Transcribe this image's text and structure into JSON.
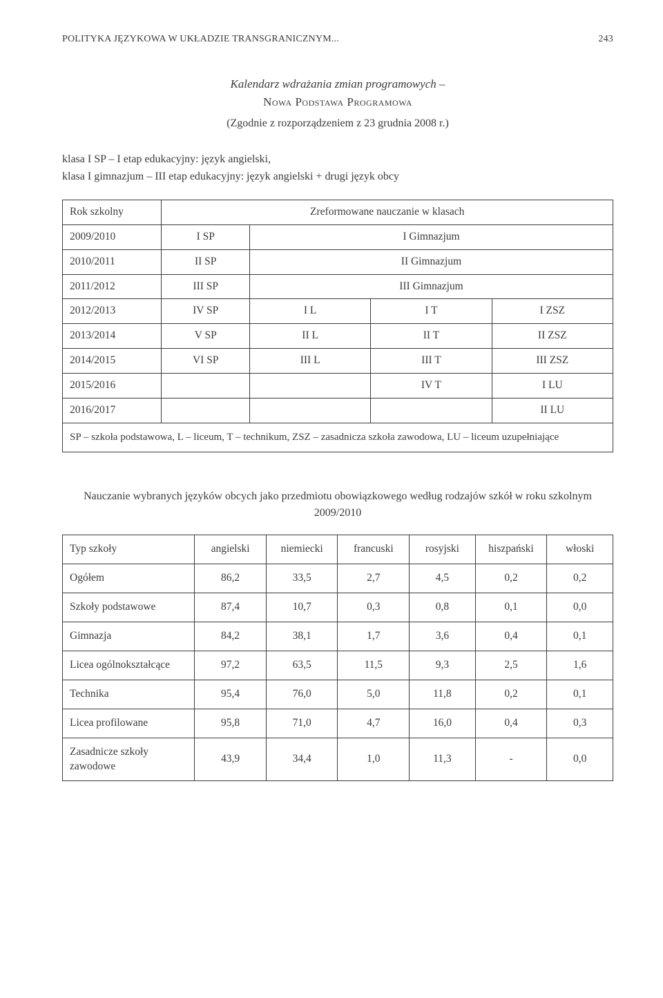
{
  "header": {
    "running_title": "POLITYKA JĘZYKOWA W UKŁADZIE TRANSGRANICZNYM...",
    "page_number": "243"
  },
  "section1": {
    "title_line1": "Kalendarz wdrażania zmian programowych –",
    "title_smallcaps": "Nowa Podstawa Programowa",
    "source": "(Zgodnie z rozporządzeniem z 23 grudnia 2008 r.)",
    "intro_line1": "klasa I SP – I etap edukacyjny: język angielski,",
    "intro_line2": "klasa I gimnazjum – III etap edukacyjny: język angielski + drugi język obcy"
  },
  "table1": {
    "headers": {
      "col0": "Rok szkolny",
      "col_span": "Zreformowane nauczanie w klasach"
    },
    "rows": [
      {
        "year": "2009/2010",
        "sp": "I SP",
        "span3": "I Gimnazjum"
      },
      {
        "year": "2010/2011",
        "sp": "II SP",
        "span3": "II Gimnazjum"
      },
      {
        "year": "2011/2012",
        "sp": "III SP",
        "span3": "III Gimnazjum"
      },
      {
        "year": "2012/2013",
        "sp": "IV SP",
        "l": "I L",
        "t": "I T",
        "z": "I ZSZ"
      },
      {
        "year": "2013/2014",
        "sp": "V SP",
        "l": "II L",
        "t": "II T",
        "z": "II ZSZ"
      },
      {
        "year": "2014/2015",
        "sp": "VI SP",
        "l": "III L",
        "t": "III T",
        "z": "III ZSZ"
      },
      {
        "year": "2015/2016",
        "sp": "",
        "l": "",
        "t": "IV T",
        "z": "I LU"
      },
      {
        "year": "2016/2017",
        "sp": "",
        "l": "",
        "t": "",
        "z": "II LU"
      }
    ],
    "footnote": "SP – szkoła podstawowa, L – liceum, T – technikum, ZSZ – zasadnicza szkoła zawodowa, LU – liceum uzupełniające"
  },
  "section2": {
    "caption": "Nauczanie wybranych języków obcych jako przedmiotu obowiązkowego według rodzajów szkół w roku szkolnym 2009/2010"
  },
  "table2": {
    "columns": [
      "Typ szkoły",
      "angielski",
      "niemiecki",
      "francuski",
      "rosyjski",
      "hiszpański",
      "włoski"
    ],
    "rows": [
      {
        "label": "Ogółem",
        "v": [
          "86,2",
          "33,5",
          "2,7",
          "4,5",
          "0,2",
          "0,2"
        ]
      },
      {
        "label": "Szkoły podstawowe",
        "v": [
          "87,4",
          "10,7",
          "0,3",
          "0,8",
          "0,1",
          "0,0"
        ]
      },
      {
        "label": "Gimnazja",
        "v": [
          "84,2",
          "38,1",
          "1,7",
          "3,6",
          "0,4",
          "0,1"
        ]
      },
      {
        "label": "Licea ogólnokształcące",
        "v": [
          "97,2",
          "63,5",
          "11,5",
          "9,3",
          "2,5",
          "1,6"
        ]
      },
      {
        "label": "Technika",
        "v": [
          "95,4",
          "76,0",
          "5,0",
          "11,8",
          "0,2",
          "0,1"
        ]
      },
      {
        "label": "Licea profilowane",
        "v": [
          "95,8",
          "71,0",
          "4,7",
          "16,0",
          "0,4",
          "0,3"
        ]
      },
      {
        "label": "Zasadnicze szkoły zawodowe",
        "v": [
          "43,9",
          "34,4",
          "1,0",
          "11,3",
          "-",
          "0,0"
        ]
      }
    ],
    "col_widths": [
      "24%",
      "13%",
      "13%",
      "13%",
      "12%",
      "13%",
      "12%"
    ]
  },
  "colors": {
    "text": "#3a3a3a",
    "background": "#ffffff",
    "border": "#3a3a3a"
  }
}
